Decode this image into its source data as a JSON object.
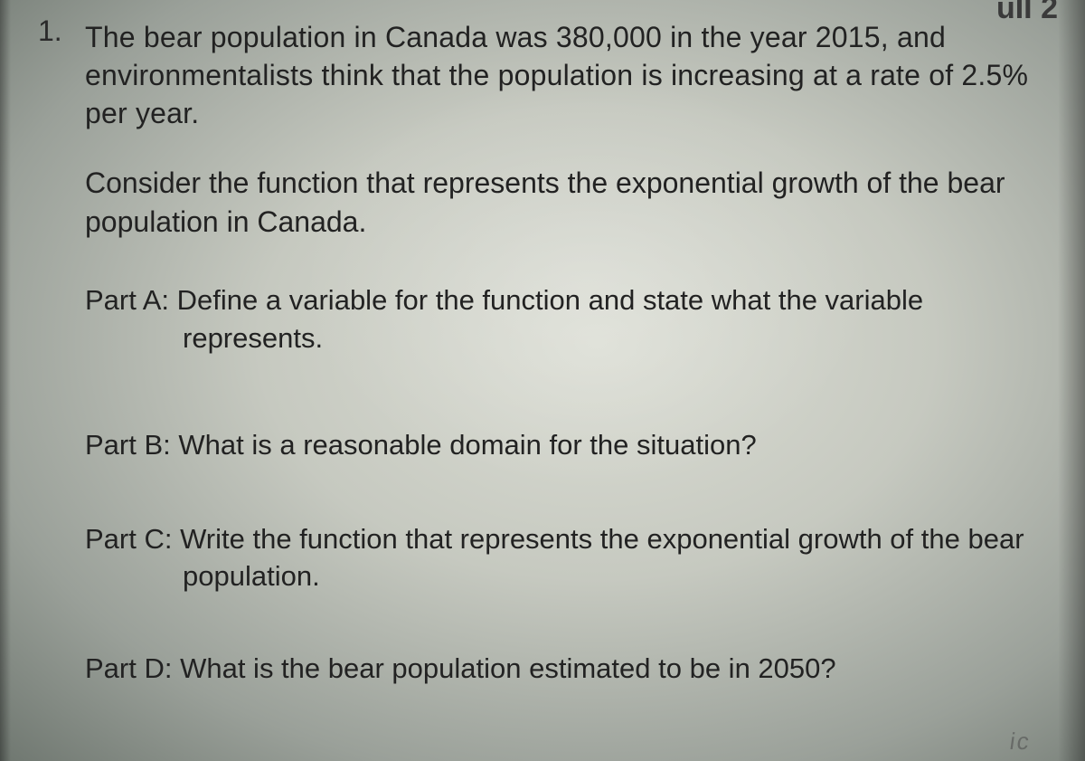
{
  "header": {
    "partial_top_right": "uII 2"
  },
  "question": {
    "number": "1.",
    "intro_paragraph": "The bear population in Canada was 380,000 in the year 2015, and environmentalists think that the population is increasing at a rate of 2.5% per year.",
    "context_paragraph": "Consider the function that represents the exponential growth of the bear population in Canada.",
    "parts": {
      "a": {
        "label": "Part A:",
        "text": "Define a variable for the function and state what the variable represents."
      },
      "b": {
        "label": "Part B:",
        "text": "What is a reasonable domain for the situation?"
      },
      "c": {
        "label": "Part C:",
        "text": "Write the function that represents the exponential growth of the bear population."
      },
      "d": {
        "label": "Part D:",
        "text": "What is the bear population estimated to be in 2050?"
      }
    }
  },
  "artifacts": {
    "bottom_right_smudge": "ic"
  },
  "style": {
    "font_family": "Century Gothic",
    "body_font_size_pt": 24,
    "text_color": "#1f1f1f",
    "background_gradient_center": "#dcded5",
    "background_gradient_edge": "#6f7770"
  }
}
